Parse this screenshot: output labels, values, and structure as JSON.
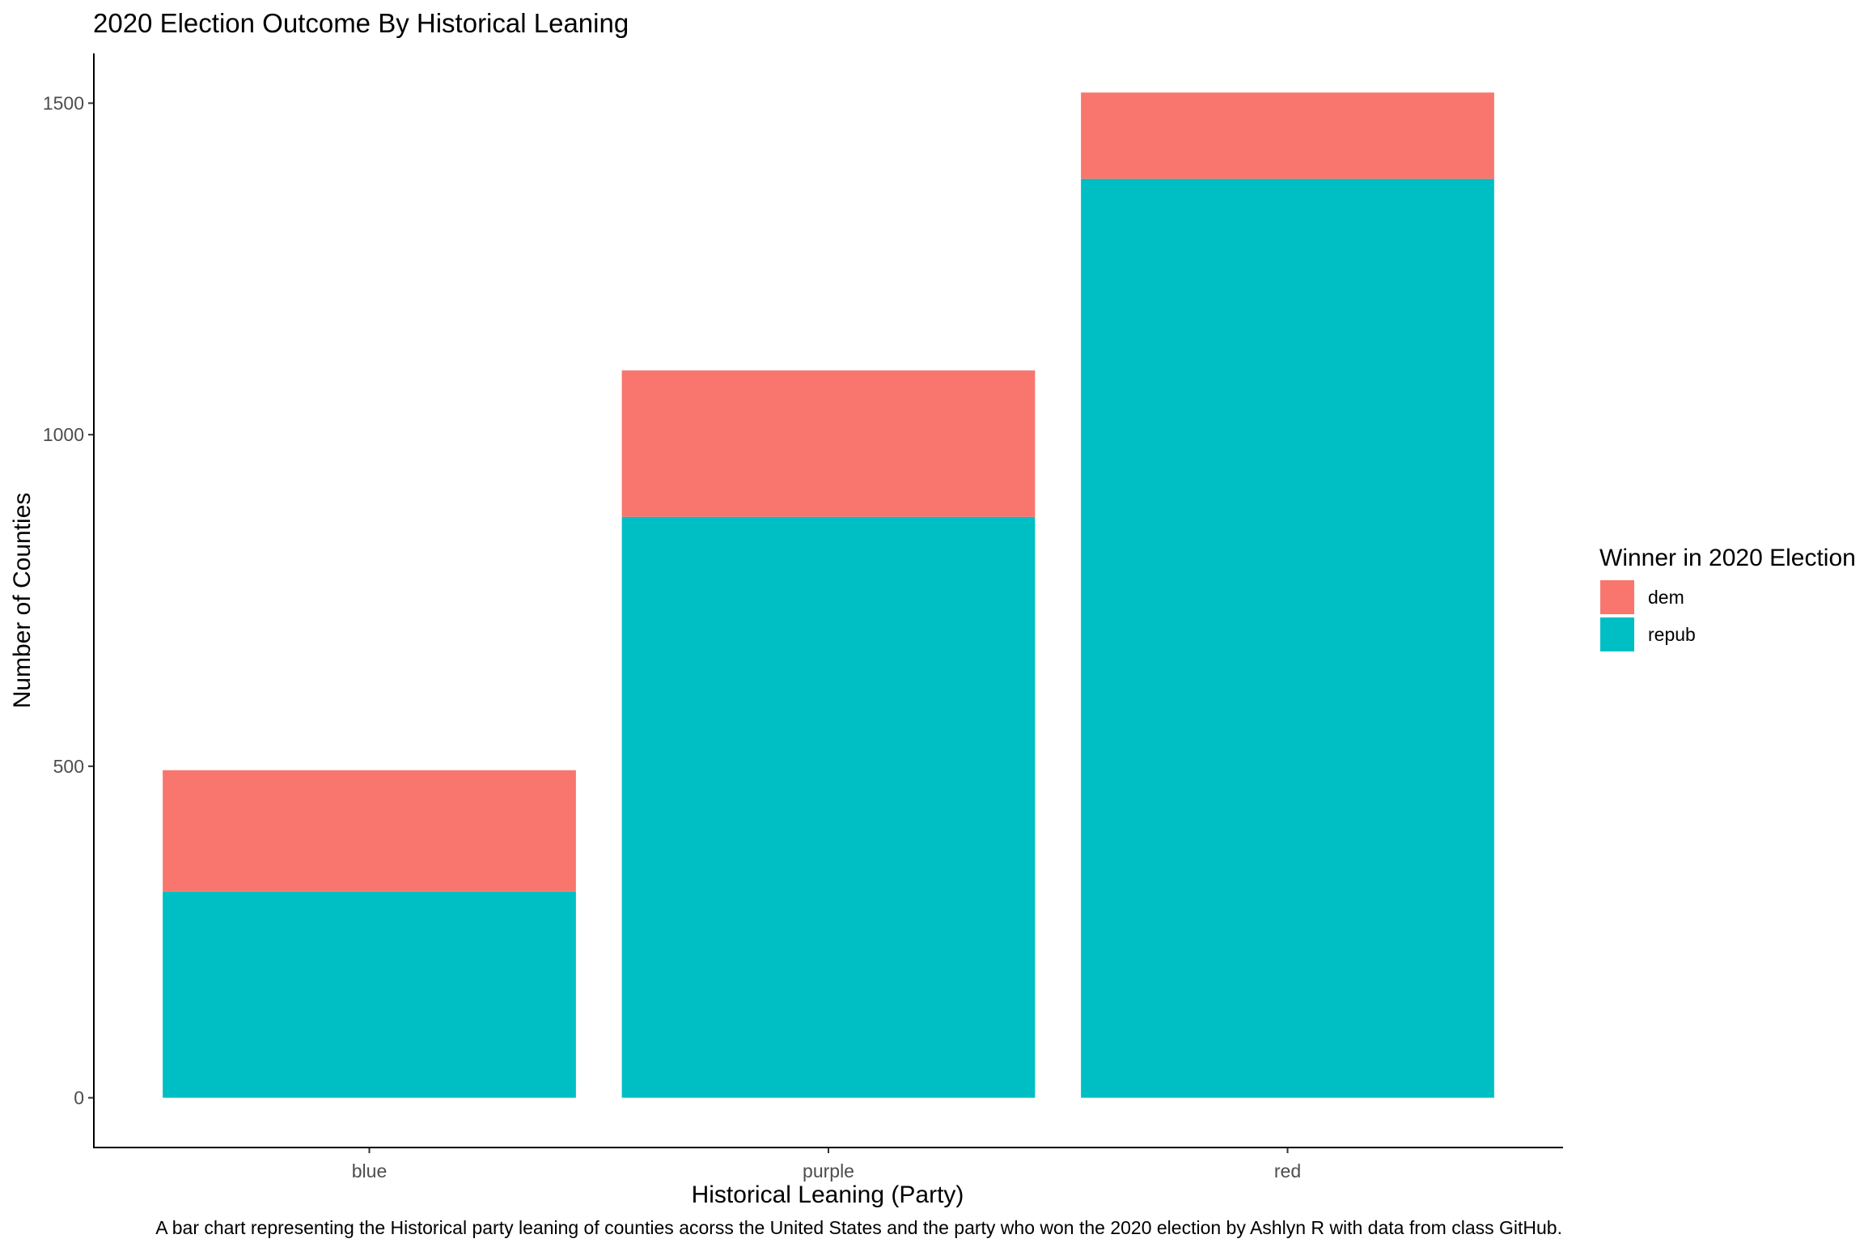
{
  "chart_data": {
    "type": "bar",
    "stacked": true,
    "title": "2020 Election Outcome By Historical Leaning",
    "xlabel": "Historical Leaning (Party)",
    "ylabel": "Number of Counties",
    "caption": "A bar chart representing the Historical party leaning of counties acorss the United States and the party who won the 2020 election by Ashlyn R with data from class GitHub.",
    "categories": [
      "blue",
      "purple",
      "red"
    ],
    "series": [
      {
        "name": "dem",
        "color": "#F8766D",
        "values": [
          183,
          221,
          130
        ]
      },
      {
        "name": "repub",
        "color": "#00BFC4",
        "values": [
          311,
          876,
          1386
        ]
      }
    ],
    "yticks": [
      0,
      500,
      1000,
      1500
    ],
    "ylim": [
      -75,
      1575
    ],
    "grid": false,
    "legend": {
      "title": "Winner in 2020 Election",
      "position": "right",
      "entries": [
        "dem",
        "repub"
      ]
    }
  }
}
